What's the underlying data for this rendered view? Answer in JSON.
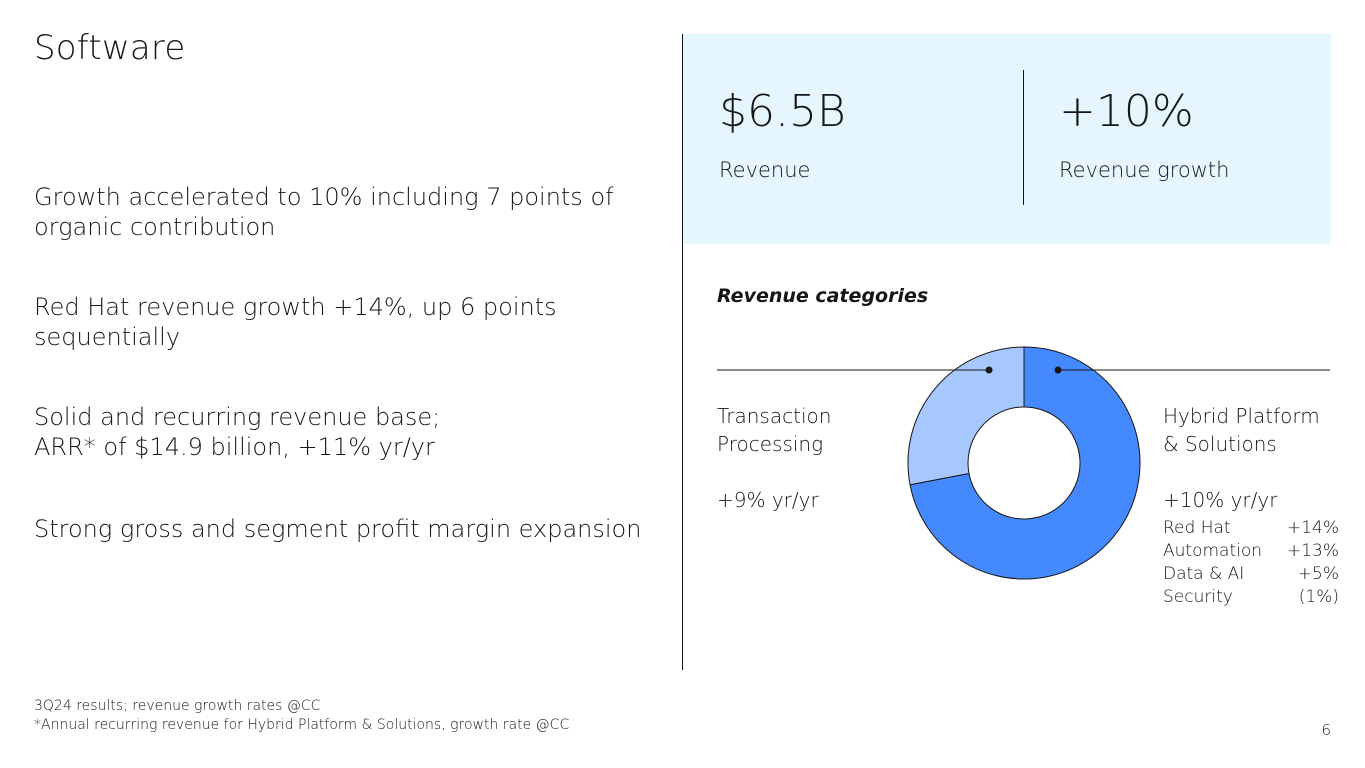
{
  "slide": {
    "title": "Software",
    "page_number": "6"
  },
  "bullets": [
    "Growth accelerated to 10% including 7 points of\norganic contribution",
    "Red Hat revenue growth +14%, up 6 points\nsequentially",
    "Solid and recurring revenue base;\nARR* of $14.9 billion, +11% yr/yr",
    "Strong gross and segment profit margin expansion"
  ],
  "footnotes": [
    "3Q24 results; revenue growth rates @CC",
    "*Annual recurring revenue for Hybrid Platform & Solutions, growth rate @CC"
  ],
  "kpis": [
    {
      "value": "$6.5B",
      "label": "Revenue"
    },
    {
      "value": "+10%",
      "label": "Revenue growth"
    }
  ],
  "chart_data": {
    "type": "pie",
    "title": "Revenue categories",
    "categories": [
      "Hybrid Platform & Solutions",
      "Transaction Processing"
    ],
    "values": [
      72,
      28
    ],
    "colors": [
      "#4589ff",
      "#a6c8ff"
    ],
    "labels": [
      {
        "name": "Hybrid Platform\n& Solutions",
        "growth": "+10% yr/yr"
      },
      {
        "name": "Transaction\nProcessing",
        "growth": "+9% yr/yr"
      }
    ],
    "hybrid_breakdown": [
      {
        "name": "Red Hat",
        "value": "+14%"
      },
      {
        "name": "Automation",
        "value": "+13%"
      },
      {
        "name": "Data & AI",
        "value": "+5%"
      },
      {
        "name": "Security",
        "value": "(1%)"
      }
    ]
  }
}
